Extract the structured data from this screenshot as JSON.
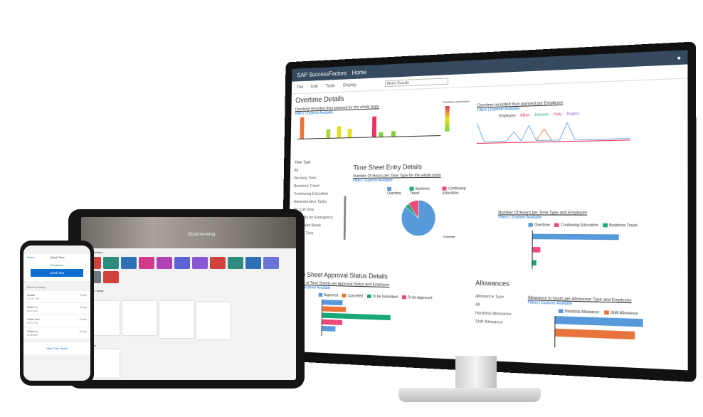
{
  "monitor": {
    "brand": "SAP SuccessFactors",
    "home_menu": "Home",
    "menu": [
      "File",
      "Edit",
      "Tools",
      "Display"
    ],
    "search_value": "Metric Results",
    "overtime": {
      "title": "Overtime Details",
      "subtitle": "Overtime recorded than planned for the whole team",
      "filter_link": "Filters | Explorer Available",
      "legend_title": "Overtime whole team"
    },
    "line_chart": {
      "subtitle": "Overtime recorded than planned per Employee",
      "filter_link": "Filters | Explorer Available",
      "series": [
        "Employee",
        "Alban",
        "Johnson",
        "Patty",
        "Rogers"
      ]
    },
    "time_type": {
      "label": "Time Type",
      "items": [
        "All",
        "Working Time",
        "Business Travel",
        "Continuing Education",
        "Administrative Tasks",
        "On Call Duty",
        "Stand By for Emergency",
        "Scheduled Break",
        "Unpaid Time"
      ]
    },
    "entry": {
      "title": "Time Sheet Entry Details",
      "subtitle": "Number Of Hours per Time Type for the whole team",
      "filter_link": "Filters | Explorer Available",
      "legend": [
        "Overtime",
        "Business Travel",
        "Continuing Education"
      ],
      "pie_values": [
        86,
        4,
        10
      ],
      "pie_label": "Overtime"
    },
    "entry_bar": {
      "subtitle": "Number Of Hours per Time Type and Employee",
      "filter_link": "Filters | Explorer Available",
      "legend": [
        "Overtime",
        "Continuing Education",
        "Business Travel"
      ],
      "values": [
        100,
        8,
        3
      ]
    },
    "approval": {
      "title": "Time Sheet Approval Status Details",
      "subtitle": "Number of Time Sheets per Approval Status and Employee",
      "filter_link": "Filters | Explorer Available",
      "legend": [
        "Approved",
        "Cancelled",
        "To be Submitted",
        "To be Approved"
      ],
      "values": [
        6,
        7,
        20,
        6,
        4
      ]
    },
    "allowances": {
      "title": "Allowances",
      "type_label": "Allowance Type",
      "items": [
        "All",
        "Hardship Allowance",
        "Shift Allowance"
      ],
      "subtitle": "Allowance in hours per Allowance Type and Employee",
      "filter_link": "Filters | Explorer Available",
      "legend": [
        "Hardship Allowance",
        "Shift Allowance"
      ],
      "values": [
        100,
        92
      ]
    },
    "colors": {
      "shell": "#354a5f",
      "blue": "#5899da",
      "orange": "#e8743b",
      "green": "#19a979",
      "pink": "#ed4a7b"
    }
  },
  "tablet": {
    "greeting": "Good morning",
    "tiles_title": "Quick Actions",
    "tiles": [
      {
        "color": "#d0423a"
      },
      {
        "color": "#2e8c7e"
      },
      {
        "color": "#2e6fb8"
      },
      {
        "color": "#d23a8a"
      },
      {
        "color": "#b042b5"
      },
      {
        "color": "#5a63d6"
      },
      {
        "color": "#8a56d4"
      },
      {
        "color": "#d0423a"
      },
      {
        "color": "#2e8c7e"
      },
      {
        "color": "#2e6fb8"
      },
      {
        "color": "#6a74d8"
      },
      {
        "color": "#6f7780"
      },
      {
        "color": "#d0423a"
      }
    ],
    "section_title": "For You Today",
    "section2_title": "Updates"
  },
  "phone": {
    "back": "Home",
    "title": "Quick Time",
    "status": "Clocked in",
    "clock_button": "Clock Out",
    "section": "Recent Activity",
    "rows": [
      {
        "label": "Lunch",
        "time": "12:30 PM",
        "day": "Today"
      },
      {
        "label": "Clock In",
        "time": "8:00 AM",
        "day": "Today"
      },
      {
        "label": "Clock Out",
        "time": "5:00 PM",
        "day": "Today"
      },
      {
        "label": "Clock In",
        "time": "8:15 AM",
        "day": "Today"
      }
    ],
    "link": "View Time Sheet"
  }
}
